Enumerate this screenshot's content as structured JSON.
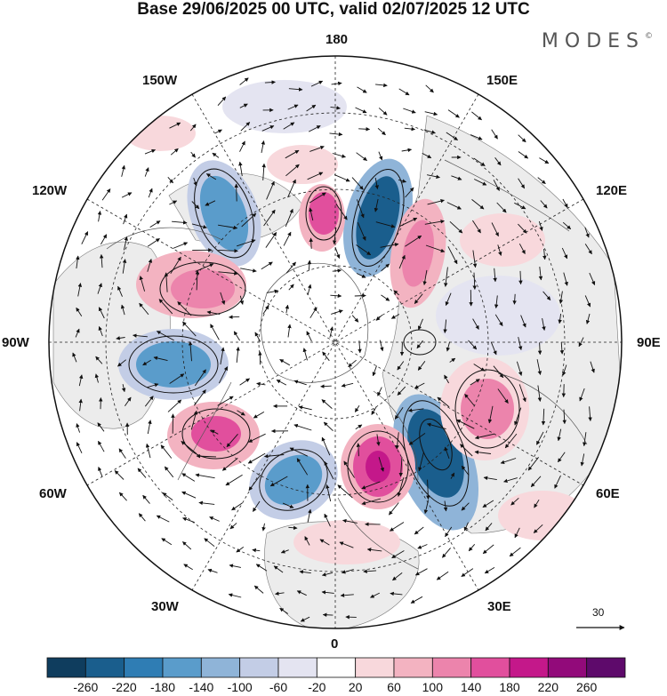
{
  "title": "Base 29/06/2025 00 UTC, valid 02/07/2025 12 UTC",
  "brand": "MODES",
  "brand_mark": "©",
  "longitude_labels": {
    "n180": "180",
    "e150": "150E",
    "e120": "120E",
    "e90": "90E",
    "e60": "60E",
    "e30": "30E",
    "s0": "0",
    "w30": "30W",
    "w60": "60W",
    "w90": "90W",
    "w120": "120W",
    "w150": "150W"
  },
  "reference_vector": {
    "value": "30"
  },
  "colorbar": {
    "levels": [
      "-260",
      "-220",
      "-180",
      "-140",
      "-100",
      "-60",
      "-20",
      "20",
      "60",
      "100",
      "140",
      "180",
      "220",
      "260"
    ],
    "colors": [
      "#0f3d5e",
      "#1a5e8d",
      "#2f7db4",
      "#5a9ccb",
      "#8fb4d8",
      "#c3cde6",
      "#e4e4f1",
      "#ffffff",
      "#f8d8dc",
      "#f3b3c1",
      "#ec84ac",
      "#e14f9d",
      "#c4188a",
      "#920a7a",
      "#5e0a6b"
    ]
  },
  "anomaly_colors": {
    "positive": "#ec84ac",
    "negative": "#5a9ccb",
    "land_shade": "#e9e9e9"
  }
}
